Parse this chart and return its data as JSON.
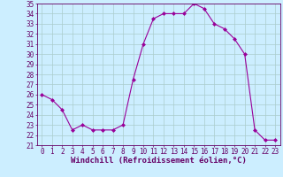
{
  "x": [
    0,
    1,
    2,
    3,
    4,
    5,
    6,
    7,
    8,
    9,
    10,
    11,
    12,
    13,
    14,
    15,
    16,
    17,
    18,
    19,
    20,
    21,
    22,
    23
  ],
  "y": [
    26.0,
    25.5,
    24.5,
    22.5,
    23.0,
    22.5,
    22.5,
    22.5,
    23.0,
    27.5,
    31.0,
    33.5,
    34.0,
    34.0,
    34.0,
    35.0,
    34.5,
    33.0,
    32.5,
    31.5,
    30.0,
    22.5,
    21.5,
    21.5
  ],
  "line_color": "#990099",
  "marker": "D",
  "marker_size": 2,
  "bg_color": "#cceeff",
  "grid_color": "#aacccc",
  "xlabel": "Windchill (Refroidissement éolien,°C)",
  "xlim": [
    -0.5,
    23.5
  ],
  "ylim": [
    21,
    35
  ],
  "yticks": [
    21,
    22,
    23,
    24,
    25,
    26,
    27,
    28,
    29,
    30,
    31,
    32,
    33,
    34,
    35
  ],
  "xticks": [
    0,
    1,
    2,
    3,
    4,
    5,
    6,
    7,
    8,
    9,
    10,
    11,
    12,
    13,
    14,
    15,
    16,
    17,
    18,
    19,
    20,
    21,
    22,
    23
  ],
  "tick_fontsize": 5.5,
  "label_fontsize": 6.5,
  "spine_color": "#660066",
  "text_color": "#660066"
}
